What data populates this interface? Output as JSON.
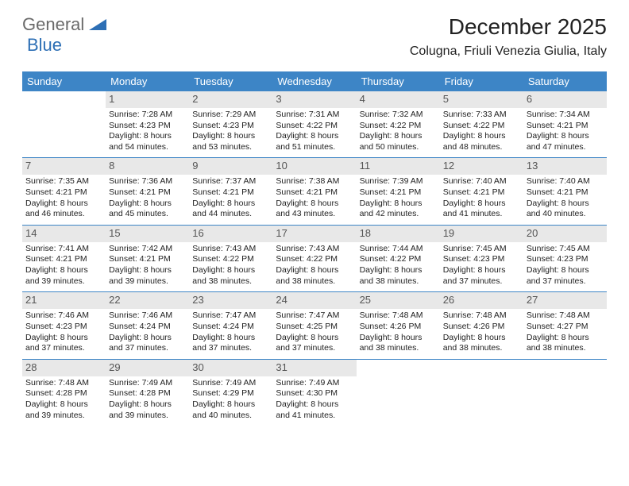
{
  "logo": {
    "word1": "General",
    "word2": "Blue"
  },
  "title": "December 2025",
  "location": "Colugna, Friuli Venezia Giulia, Italy",
  "colors": {
    "header_bar": "#3d85c6",
    "header_text": "#ffffff",
    "daynum_bg": "#e8e8e8",
    "rule": "#3d85c6",
    "logo_general": "#6a6a6a",
    "logo_blue": "#2d6fb5"
  },
  "day_names": [
    "Sunday",
    "Monday",
    "Tuesday",
    "Wednesday",
    "Thursday",
    "Friday",
    "Saturday"
  ],
  "weeks": [
    [
      {
        "day": "",
        "lines": []
      },
      {
        "day": "1",
        "lines": [
          "Sunrise: 7:28 AM",
          "Sunset: 4:23 PM",
          "Daylight: 8 hours",
          "and 54 minutes."
        ]
      },
      {
        "day": "2",
        "lines": [
          "Sunrise: 7:29 AM",
          "Sunset: 4:23 PM",
          "Daylight: 8 hours",
          "and 53 minutes."
        ]
      },
      {
        "day": "3",
        "lines": [
          "Sunrise: 7:31 AM",
          "Sunset: 4:22 PM",
          "Daylight: 8 hours",
          "and 51 minutes."
        ]
      },
      {
        "day": "4",
        "lines": [
          "Sunrise: 7:32 AM",
          "Sunset: 4:22 PM",
          "Daylight: 8 hours",
          "and 50 minutes."
        ]
      },
      {
        "day": "5",
        "lines": [
          "Sunrise: 7:33 AM",
          "Sunset: 4:22 PM",
          "Daylight: 8 hours",
          "and 48 minutes."
        ]
      },
      {
        "day": "6",
        "lines": [
          "Sunrise: 7:34 AM",
          "Sunset: 4:21 PM",
          "Daylight: 8 hours",
          "and 47 minutes."
        ]
      }
    ],
    [
      {
        "day": "7",
        "lines": [
          "Sunrise: 7:35 AM",
          "Sunset: 4:21 PM",
          "Daylight: 8 hours",
          "and 46 minutes."
        ]
      },
      {
        "day": "8",
        "lines": [
          "Sunrise: 7:36 AM",
          "Sunset: 4:21 PM",
          "Daylight: 8 hours",
          "and 45 minutes."
        ]
      },
      {
        "day": "9",
        "lines": [
          "Sunrise: 7:37 AM",
          "Sunset: 4:21 PM",
          "Daylight: 8 hours",
          "and 44 minutes."
        ]
      },
      {
        "day": "10",
        "lines": [
          "Sunrise: 7:38 AM",
          "Sunset: 4:21 PM",
          "Daylight: 8 hours",
          "and 43 minutes."
        ]
      },
      {
        "day": "11",
        "lines": [
          "Sunrise: 7:39 AM",
          "Sunset: 4:21 PM",
          "Daylight: 8 hours",
          "and 42 minutes."
        ]
      },
      {
        "day": "12",
        "lines": [
          "Sunrise: 7:40 AM",
          "Sunset: 4:21 PM",
          "Daylight: 8 hours",
          "and 41 minutes."
        ]
      },
      {
        "day": "13",
        "lines": [
          "Sunrise: 7:40 AM",
          "Sunset: 4:21 PM",
          "Daylight: 8 hours",
          "and 40 minutes."
        ]
      }
    ],
    [
      {
        "day": "14",
        "lines": [
          "Sunrise: 7:41 AM",
          "Sunset: 4:21 PM",
          "Daylight: 8 hours",
          "and 39 minutes."
        ]
      },
      {
        "day": "15",
        "lines": [
          "Sunrise: 7:42 AM",
          "Sunset: 4:21 PM",
          "Daylight: 8 hours",
          "and 39 minutes."
        ]
      },
      {
        "day": "16",
        "lines": [
          "Sunrise: 7:43 AM",
          "Sunset: 4:22 PM",
          "Daylight: 8 hours",
          "and 38 minutes."
        ]
      },
      {
        "day": "17",
        "lines": [
          "Sunrise: 7:43 AM",
          "Sunset: 4:22 PM",
          "Daylight: 8 hours",
          "and 38 minutes."
        ]
      },
      {
        "day": "18",
        "lines": [
          "Sunrise: 7:44 AM",
          "Sunset: 4:22 PM",
          "Daylight: 8 hours",
          "and 38 minutes."
        ]
      },
      {
        "day": "19",
        "lines": [
          "Sunrise: 7:45 AM",
          "Sunset: 4:23 PM",
          "Daylight: 8 hours",
          "and 37 minutes."
        ]
      },
      {
        "day": "20",
        "lines": [
          "Sunrise: 7:45 AM",
          "Sunset: 4:23 PM",
          "Daylight: 8 hours",
          "and 37 minutes."
        ]
      }
    ],
    [
      {
        "day": "21",
        "lines": [
          "Sunrise: 7:46 AM",
          "Sunset: 4:23 PM",
          "Daylight: 8 hours",
          "and 37 minutes."
        ]
      },
      {
        "day": "22",
        "lines": [
          "Sunrise: 7:46 AM",
          "Sunset: 4:24 PM",
          "Daylight: 8 hours",
          "and 37 minutes."
        ]
      },
      {
        "day": "23",
        "lines": [
          "Sunrise: 7:47 AM",
          "Sunset: 4:24 PM",
          "Daylight: 8 hours",
          "and 37 minutes."
        ]
      },
      {
        "day": "24",
        "lines": [
          "Sunrise: 7:47 AM",
          "Sunset: 4:25 PM",
          "Daylight: 8 hours",
          "and 37 minutes."
        ]
      },
      {
        "day": "25",
        "lines": [
          "Sunrise: 7:48 AM",
          "Sunset: 4:26 PM",
          "Daylight: 8 hours",
          "and 38 minutes."
        ]
      },
      {
        "day": "26",
        "lines": [
          "Sunrise: 7:48 AM",
          "Sunset: 4:26 PM",
          "Daylight: 8 hours",
          "and 38 minutes."
        ]
      },
      {
        "day": "27",
        "lines": [
          "Sunrise: 7:48 AM",
          "Sunset: 4:27 PM",
          "Daylight: 8 hours",
          "and 38 minutes."
        ]
      }
    ],
    [
      {
        "day": "28",
        "lines": [
          "Sunrise: 7:48 AM",
          "Sunset: 4:28 PM",
          "Daylight: 8 hours",
          "and 39 minutes."
        ]
      },
      {
        "day": "29",
        "lines": [
          "Sunrise: 7:49 AM",
          "Sunset: 4:28 PM",
          "Daylight: 8 hours",
          "and 39 minutes."
        ]
      },
      {
        "day": "30",
        "lines": [
          "Sunrise: 7:49 AM",
          "Sunset: 4:29 PM",
          "Daylight: 8 hours",
          "and 40 minutes."
        ]
      },
      {
        "day": "31",
        "lines": [
          "Sunrise: 7:49 AM",
          "Sunset: 4:30 PM",
          "Daylight: 8 hours",
          "and 41 minutes."
        ]
      },
      {
        "day": "",
        "lines": []
      },
      {
        "day": "",
        "lines": []
      },
      {
        "day": "",
        "lines": []
      }
    ]
  ]
}
